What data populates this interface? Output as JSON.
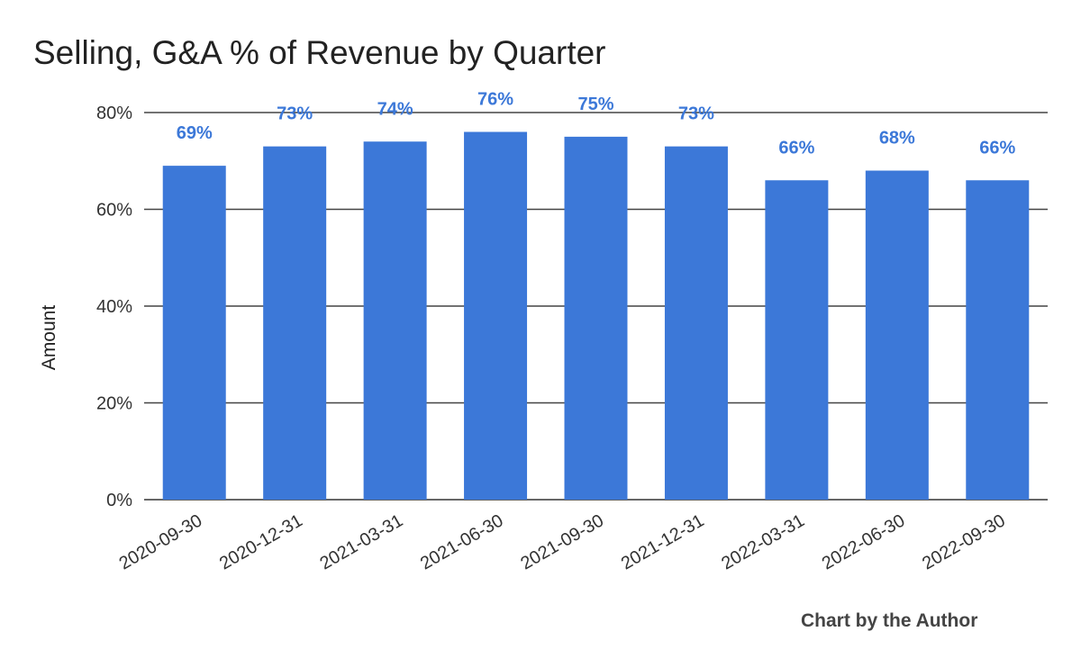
{
  "chart_data": {
    "type": "bar",
    "title": "Selling, G&A % of Revenue by Quarter",
    "ylabel": "Amount",
    "xlabel": "",
    "categories": [
      "2020-09-30",
      "2020-12-31",
      "2021-03-31",
      "2021-06-30",
      "2021-09-30",
      "2021-12-31",
      "2022-03-31",
      "2022-06-30",
      "2022-09-30"
    ],
    "values": [
      69,
      73,
      74,
      76,
      75,
      73,
      66,
      68,
      66
    ],
    "data_labels": [
      "69%",
      "73%",
      "74%",
      "76%",
      "75%",
      "73%",
      "66%",
      "68%",
      "66%"
    ],
    "ylim": [
      0,
      80
    ],
    "yticks": [
      0,
      20,
      40,
      60,
      80
    ],
    "ytick_labels": [
      "0%",
      "20%",
      "40%",
      "60%",
      "80%"
    ],
    "grid": true,
    "bar_color": "#3c78d8",
    "label_color": "#3c78d8"
  },
  "credit": "Chart by the Author"
}
